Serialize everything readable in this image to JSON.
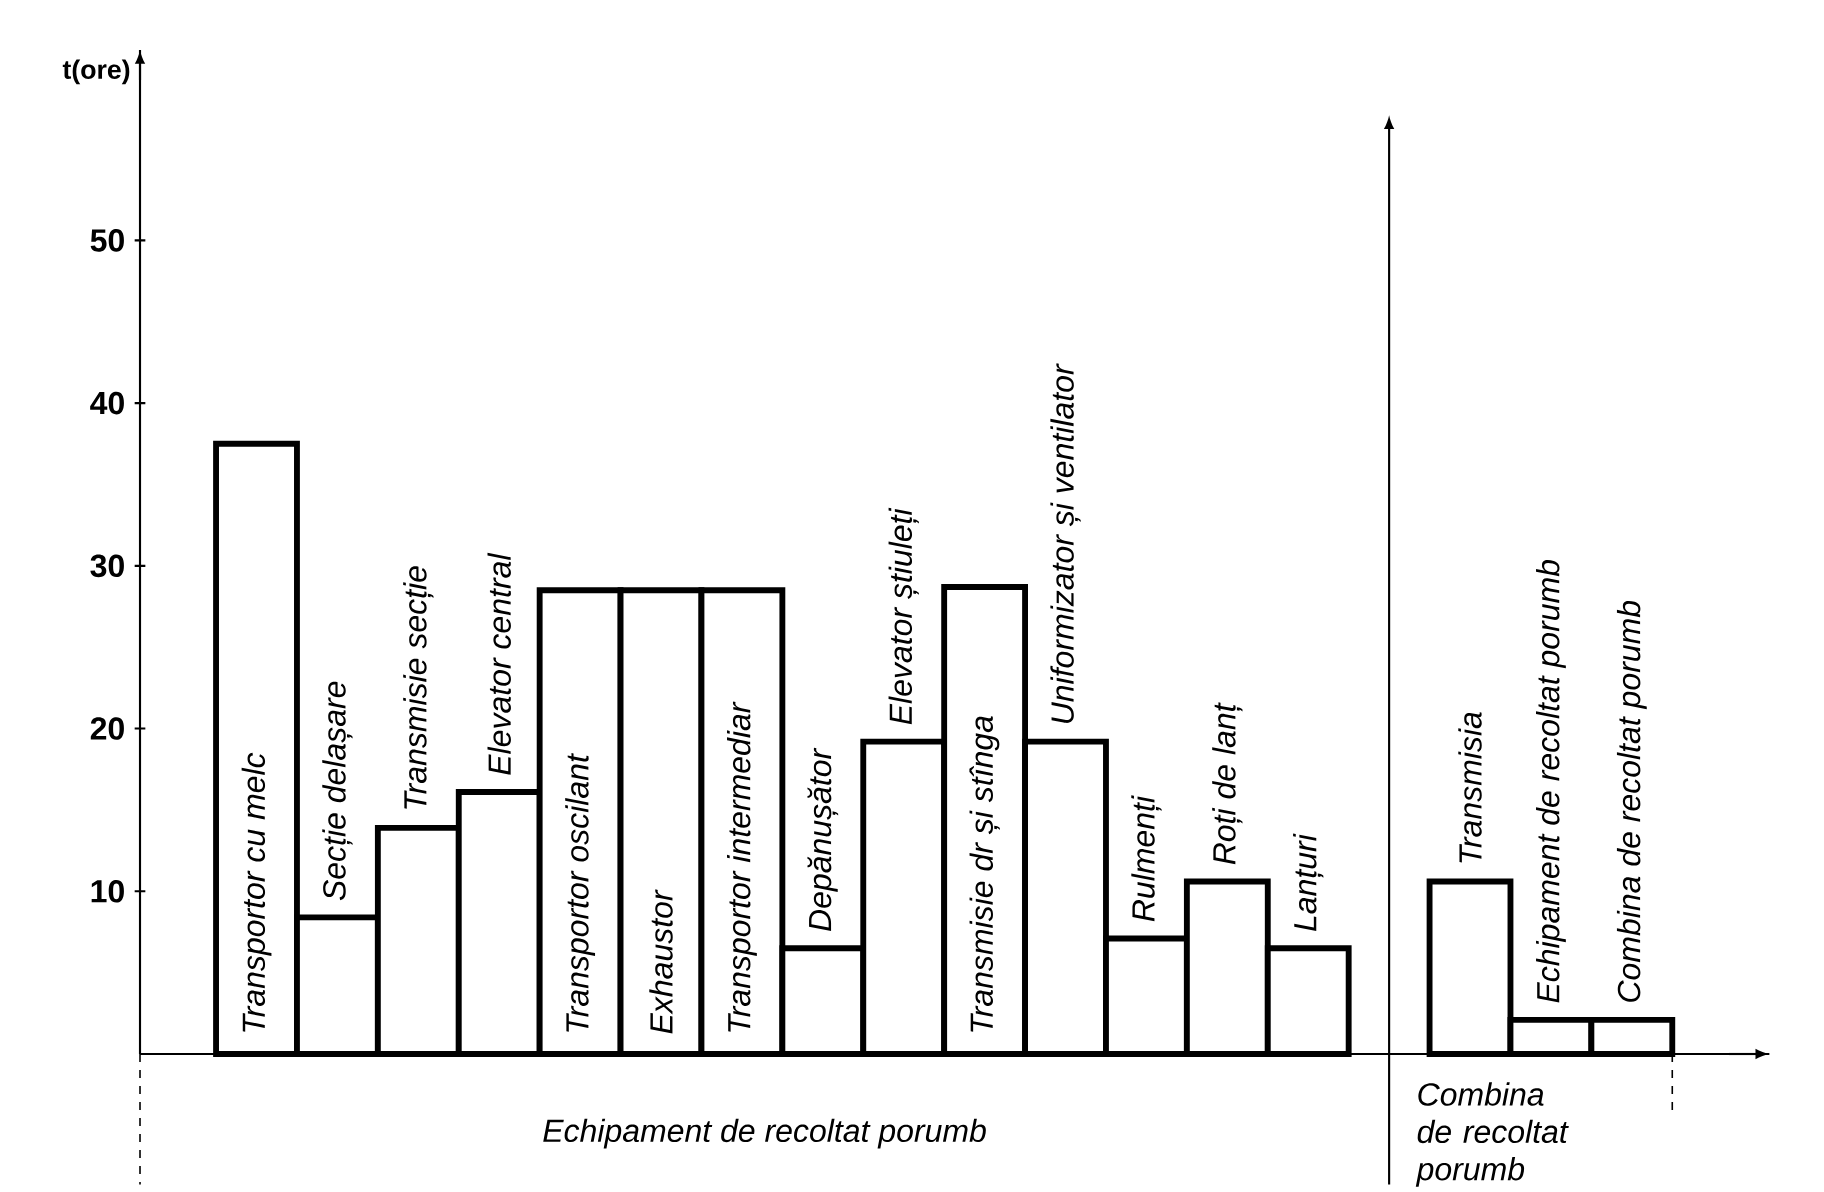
{
  "chart_data": {
    "type": "bar",
    "ylabel": "t(ore)",
    "categories": [
      "Transportor cu melc",
      "Secție delașare",
      "Transmisie secție",
      "Elevator central",
      "Transportor oscilant",
      "Exhaustor",
      "Transportor intermediar",
      "Depănușător",
      "Elevator știuleți",
      "Transmisie dr și stînga",
      "Uniformizator și ventilator",
      "Rulmenți",
      "Roți de lanț",
      "Lanțuri",
      null,
      "Transmisia",
      "Echipament de recoltat porumb",
      "Combina de recoltat porumb"
    ],
    "values": [
      37.5,
      8.4,
      13.9,
      16.1,
      28.5,
      28.5,
      28.5,
      6.5,
      19.2,
      28.7,
      19.2,
      7.1,
      10.6,
      6.5,
      null,
      10.6,
      2.1,
      2.1
    ],
    "color": "#000000",
    "ylim": [
      0,
      61.7
    ],
    "yticks": [
      10,
      20,
      30,
      40,
      50
    ],
    "annotations": [
      "Echipament de recoltat porumb",
      "Combina de recoltat porumb"
    ]
  }
}
